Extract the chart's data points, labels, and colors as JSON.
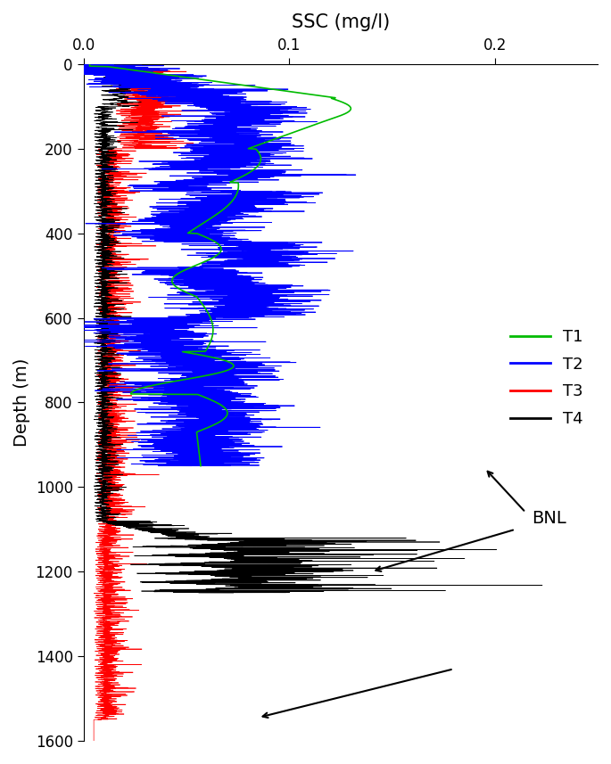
{
  "title": "SSC (mg/l)",
  "ylabel": "Depth (m)",
  "xlim": [
    0.0,
    0.25
  ],
  "ylim": [
    1600,
    0
  ],
  "xticks": [
    0.0,
    0.1,
    0.2
  ],
  "yticks": [
    0,
    200,
    400,
    600,
    800,
    1000,
    1200,
    1400,
    1600
  ],
  "colors": {
    "T1": "#00bb00",
    "T2": "#0000ff",
    "T3": "#ff0000",
    "T4": "#000000"
  },
  "figsize": [
    6.85,
    8.57
  ],
  "dpi": 100
}
